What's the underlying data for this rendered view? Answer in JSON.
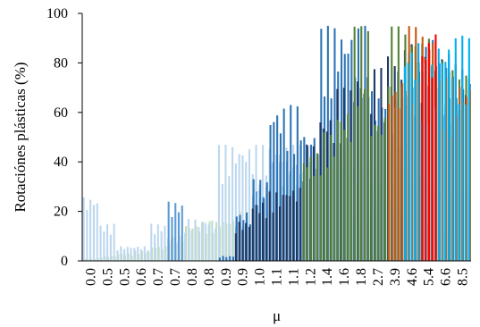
{
  "chart_data": {
    "type": "bar",
    "title": "",
    "xlabel": "μ",
    "ylabel": "Rotaciónes plásticas (%)",
    "ylim": [
      0,
      100
    ],
    "yticks": [
      0,
      20,
      40,
      60,
      80,
      100
    ],
    "grid": false,
    "legend": "none",
    "x_tick_labels": [
      "0.0",
      "0.5",
      "0.5",
      "0.6",
      "0.7",
      "0.7",
      "0.8",
      "0.8",
      "0.9",
      "0.9",
      "1.0",
      "1.1",
      "1.1",
      "1.2",
      "1.4",
      "1.6",
      "1.8",
      "2.7",
      "3.9",
      "4.6",
      "5.4",
      "6.6",
      "8.5"
    ],
    "series": [
      {
        "color": "#f8cbad",
        "values": [
          0,
          0,
          0,
          0,
          0,
          0,
          0,
          0,
          0,
          0,
          0,
          0,
          0,
          0,
          0,
          0,
          16,
          24,
          46,
          46,
          46,
          46,
          46
        ]
      },
      {
        "color": "#ffe699",
        "values": [
          0,
          0,
          0,
          0,
          0,
          0,
          0,
          0,
          5,
          10,
          15,
          20,
          24,
          30,
          31,
          38,
          46,
          46,
          46,
          46,
          40,
          38,
          35
        ]
      },
      {
        "color": "#c5e0b4",
        "values": [
          1,
          2,
          3,
          4,
          6,
          10,
          15,
          16,
          17,
          20,
          24,
          28,
          36,
          46,
          46,
          46,
          46,
          40,
          38,
          35,
          30,
          28,
          25
        ]
      },
      {
        "color": "#bdd7ee",
        "values": [
          26,
          15,
          6,
          6,
          15,
          10,
          17,
          17,
          47,
          47,
          47,
          47,
          47,
          47,
          47,
          47,
          40,
          30,
          25,
          20,
          15,
          12,
          10
        ]
      },
      {
        "color": "#5b9bd5",
        "values": [
          0,
          0,
          0,
          0,
          0,
          24,
          0,
          0,
          0,
          14,
          31,
          40,
          42,
          33,
          46,
          46,
          46,
          46,
          46,
          46,
          46,
          46,
          46
        ]
      },
      {
        "color": "#2e75b6",
        "values": [
          0,
          0,
          0,
          0,
          0,
          0,
          0,
          0,
          2,
          20,
          33,
          63,
          63,
          53,
          95,
          95,
          95,
          70,
          66,
          86,
          90,
          80,
          72
        ]
      },
      {
        "color": "#203864",
        "values": [
          0,
          0,
          0,
          0,
          0,
          0,
          0,
          0,
          0,
          16,
          24,
          28,
          30,
          47,
          60,
          70,
          78,
          78,
          85,
          88,
          85,
          84,
          80
        ]
      },
      {
        "color": "#548235",
        "values": [
          0,
          0,
          0,
          0,
          0,
          0,
          0,
          0,
          0,
          0,
          0,
          0,
          0,
          44,
          52,
          62,
          95,
          60,
          95,
          95,
          90,
          84,
          75
        ]
      },
      {
        "color": "#c55a11",
        "values": [
          0,
          0,
          0,
          0,
          0,
          0,
          0,
          0,
          0,
          0,
          0,
          0,
          0,
          0,
          0,
          0,
          0,
          0,
          74,
          95,
          95,
          74,
          74
        ]
      },
      {
        "color": "#00b0f0",
        "values": [
          0,
          0,
          0,
          0,
          0,
          0,
          0,
          0,
          0,
          0,
          0,
          0,
          0,
          0,
          0,
          0,
          0,
          0,
          0,
          90,
          80,
          91,
          91
        ]
      },
      {
        "color": "#ff0000",
        "values": [
          0,
          0,
          0,
          0,
          0,
          0,
          0,
          0,
          0,
          0,
          0,
          0,
          0,
          0,
          0,
          0,
          0,
          0,
          0,
          0,
          93,
          0,
          0
        ]
      }
    ]
  }
}
